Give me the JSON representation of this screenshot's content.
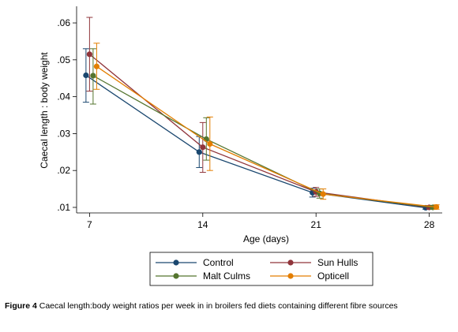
{
  "chart_data": {
    "type": "line",
    "title": "",
    "xlabel": "Age (days)",
    "ylabel": "Caecal length : body weight",
    "x": [
      7,
      14,
      21,
      28
    ],
    "x_ticks": [
      "7",
      "14",
      "21",
      "28"
    ],
    "y_ticks": [
      ".01",
      ".02",
      ".03",
      ".04",
      ".05",
      ".06"
    ],
    "y_tick_values": [
      0.01,
      0.02,
      0.03,
      0.04,
      0.05,
      0.06
    ],
    "ylim": [
      0.0085,
      0.0645
    ],
    "xlim": [
      6.2,
      28.8
    ],
    "grid": false,
    "legend_position": "bottom",
    "error_bars": true,
    "series": [
      {
        "name": "Control",
        "color": "#1a476f",
        "values": [
          0.0458,
          0.025,
          0.014,
          0.0099
        ],
        "lower": [
          0.0385,
          0.0208,
          0.0128,
          0.0095
        ],
        "upper": [
          0.053,
          0.0292,
          0.0152,
          0.0103
        ]
      },
      {
        "name": "Sun Hulls",
        "color": "#90353b",
        "values": [
          0.0515,
          0.0263,
          0.0142,
          0.01
        ],
        "lower": [
          0.0415,
          0.0195,
          0.013,
          0.0095
        ],
        "upper": [
          0.0615,
          0.033,
          0.0154,
          0.0105
        ]
      },
      {
        "name": "Malt Culms",
        "color": "#55752f",
        "values": [
          0.0457,
          0.0285,
          0.0138,
          0.01
        ],
        "lower": [
          0.038,
          0.0228,
          0.0125,
          0.0095
        ],
        "upper": [
          0.053,
          0.0343,
          0.015,
          0.0105
        ]
      },
      {
        "name": "Opticell",
        "color": "#e37e00",
        "values": [
          0.0482,
          0.0272,
          0.0136,
          0.0101
        ],
        "lower": [
          0.042,
          0.02,
          0.0122,
          0.0095
        ],
        "upper": [
          0.0545,
          0.0345,
          0.015,
          0.0107
        ]
      }
    ]
  },
  "caption": {
    "label": "Figure 4",
    "text": " Caecal length:body weight ratios per week in in broilers fed diets containing different fibre sources"
  }
}
